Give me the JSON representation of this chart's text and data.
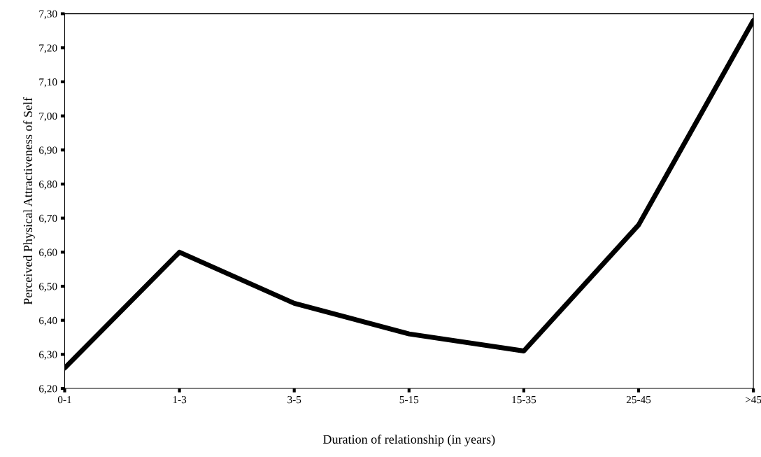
{
  "chart_data": {
    "type": "line",
    "xlabel": "Duration of relationship (in years)",
    "ylabel": "Perceived Physical Attractiveness of Self",
    "categories": [
      "0-1",
      "1-3",
      "3-5",
      "5-15",
      "15-35",
      "25-45",
      ">45"
    ],
    "series": [
      {
        "color": "#000000",
        "values": [
          6.26,
          6.6,
          6.45,
          6.36,
          6.31,
          6.68,
          7.28
        ]
      }
    ],
    "ylim": [
      6.2,
      7.3
    ],
    "yticks": [
      {
        "value": 6.2,
        "label": "6,20"
      },
      {
        "value": 6.3,
        "label": "6,30"
      },
      {
        "value": 6.4,
        "label": "6,40"
      },
      {
        "value": 6.5,
        "label": "6,50"
      },
      {
        "value": 6.6,
        "label": "6,60"
      },
      {
        "value": 6.7,
        "label": "6,70"
      },
      {
        "value": 6.8,
        "label": "6,80"
      },
      {
        "value": 6.9,
        "label": "6,90"
      },
      {
        "value": 7.0,
        "label": "7,00"
      },
      {
        "value": 7.1,
        "label": "7,10"
      },
      {
        "value": 7.2,
        "label": "7,20"
      },
      {
        "value": 7.3,
        "label": "7,30"
      }
    ],
    "grid": false,
    "legend": false,
    "marker": "none",
    "line_style": "solid"
  }
}
